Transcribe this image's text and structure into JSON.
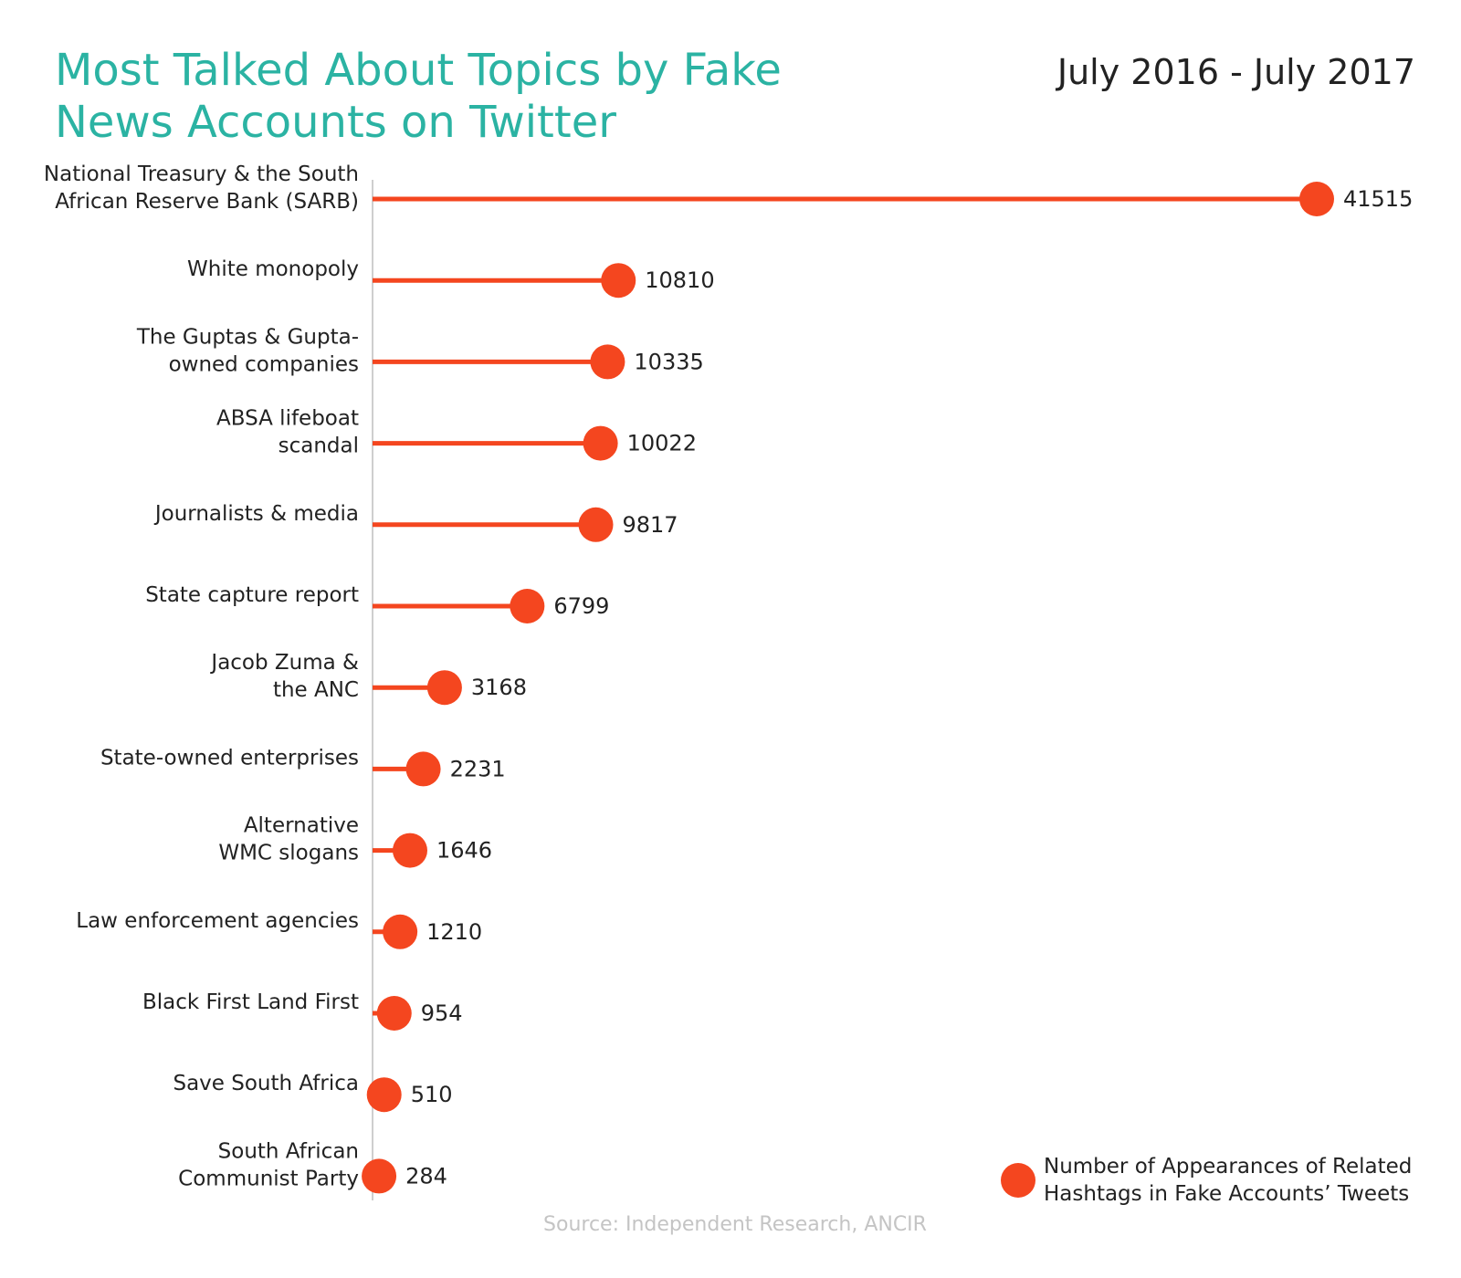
{
  "header": {
    "title_lines": [
      "Most Talked About Topics by Fake",
      "News Accounts on Twitter"
    ],
    "date_range": "July 2016 - July 2017"
  },
  "source": "Source: Independent Research, ANCIR",
  "legend": {
    "lines": [
      "Number of Appearances of Related",
      "Hashtags in Fake Accounts’ Tweets"
    ],
    "placement": "bottom-right"
  },
  "colors": {
    "title": "#2bb3a3",
    "series": "#f4461f",
    "axis": "#bdbdbd",
    "text": "#222222",
    "source": "#c4c4c4"
  },
  "chart_data": {
    "type": "lollipop",
    "orientation": "horizontal",
    "title": "Most Talked About Topics by Fake News Accounts on Twitter",
    "subtitle": "July 2016 - July 2017",
    "xlim": [
      0,
      41515
    ],
    "grid": false,
    "categories": [
      [
        "National Treasury & the South",
        "African Reserve Bank (SARB)"
      ],
      [
        "White monopoly"
      ],
      [
        "The Guptas & Gupta-",
        "owned companies"
      ],
      [
        "ABSA lifeboat",
        "scandal"
      ],
      [
        "Journalists & media"
      ],
      [
        "State capture report"
      ],
      [
        "Jacob Zuma &",
        "the ANC"
      ],
      [
        "State-owned enterprises"
      ],
      [
        "Alternative",
        "WMC slogans"
      ],
      [
        "Law enforcement agencies"
      ],
      [
        "Black First Land First"
      ],
      [
        "Save South Africa"
      ],
      [
        "South African",
        "Communist Party"
      ]
    ],
    "series": [
      {
        "name": "Number of Appearances of Related Hashtags in Fake Accounts’ Tweets",
        "values": [
          41515,
          10810,
          10335,
          10022,
          9817,
          6799,
          3168,
          2231,
          1646,
          1210,
          954,
          510,
          284
        ]
      }
    ]
  }
}
